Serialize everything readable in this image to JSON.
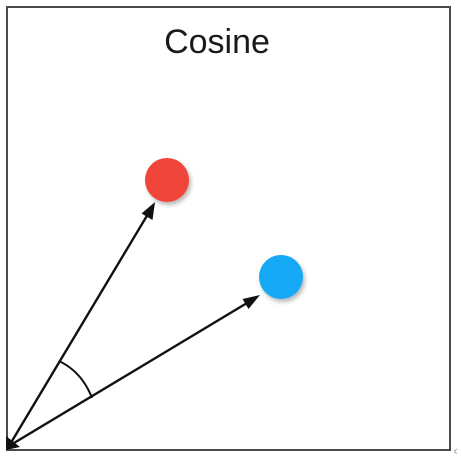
{
  "title": "Cosine",
  "colors": {
    "point_a": "#f0453a",
    "point_b": "#14a9f5",
    "vectors": "#111111",
    "frame": "#4a4a4a"
  },
  "elements": {
    "vector_count": 2,
    "point_count": 2,
    "angle_marker": "arc"
  },
  "edge_mark": "‹"
}
